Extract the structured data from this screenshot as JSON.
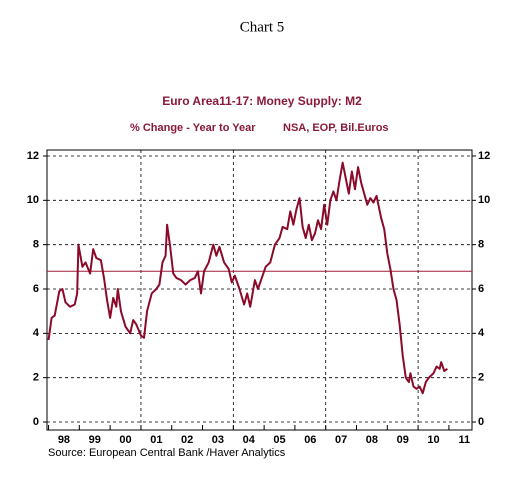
{
  "chart_data": {
    "type": "line",
    "header": "Chart 5",
    "title": "Euro Area11-17: Money Supply: M2",
    "subtitle": "% Change - Year to Year",
    "subtitle_right": "NSA, EOP, Bil.Euros",
    "source": "Source:  European Central Bank /Haver Analytics",
    "xlim": [
      1997.95,
      2011.75
    ],
    "xticks": [
      {
        "value": 1998.5,
        "label": "98"
      },
      {
        "value": 1999.5,
        "label": "99"
      },
      {
        "value": 2000.5,
        "label": "00"
      },
      {
        "value": 2001.5,
        "label": "01"
      },
      {
        "value": 2002.5,
        "label": "02"
      },
      {
        "value": 2003.5,
        "label": "03"
      },
      {
        "value": 2004.5,
        "label": "04"
      },
      {
        "value": 2005.5,
        "label": "05"
      },
      {
        "value": 2006.5,
        "label": "06"
      },
      {
        "value": 2007.5,
        "label": "07"
      },
      {
        "value": 2008.5,
        "label": "08"
      },
      {
        "value": 2009.5,
        "label": "09"
      },
      {
        "value": 2010.5,
        "label": "10"
      },
      {
        "value": 2011.5,
        "label": "11"
      }
    ],
    "xminorticks": [
      1998,
      1999,
      2000,
      2001,
      2002,
      2003,
      2004,
      2005,
      2006,
      2007,
      2008,
      2009,
      2010,
      2011
    ],
    "xgrid": [
      2001,
      2004,
      2007,
      2010
    ],
    "ylim": [
      -0.36,
      12.27
    ],
    "yticks": [
      0,
      2,
      4,
      6,
      8,
      10,
      12
    ],
    "grid": true,
    "reference_line": {
      "value": 6.8,
      "color": "#a01c3a"
    },
    "series": [
      {
        "name": "M2",
        "color": "#8b0a2a",
        "x": [
          1998.0,
          1998.1,
          1998.2,
          1998.35,
          1998.45,
          1998.55,
          1998.7,
          1998.85,
          1998.93,
          1998.97,
          1999.1,
          1999.2,
          1999.35,
          1999.45,
          1999.55,
          1999.7,
          1999.8,
          1999.9,
          2000.0,
          2000.1,
          2000.2,
          2000.25,
          2000.35,
          2000.5,
          2000.65,
          2000.75,
          2000.85,
          2001.0,
          2001.1,
          2001.2,
          2001.35,
          2001.5,
          2001.6,
          2001.7,
          2001.8,
          2001.85,
          2001.95,
          2002.05,
          2002.15,
          2002.3,
          2002.45,
          2002.6,
          2002.75,
          2002.85,
          2002.95,
          2003.05,
          2003.2,
          2003.35,
          2003.45,
          2003.55,
          2003.7,
          2003.85,
          2003.95,
          2004.05,
          2004.2,
          2004.35,
          2004.45,
          2004.55,
          2004.7,
          2004.8,
          2004.95,
          2005.05,
          2005.2,
          2005.35,
          2005.5,
          2005.6,
          2005.75,
          2005.85,
          2005.95,
          2006.05,
          2006.15,
          2006.25,
          2006.35,
          2006.45,
          2006.55,
          2006.65,
          2006.75,
          2006.85,
          2006.95,
          2007.05,
          2007.15,
          2007.25,
          2007.35,
          2007.45,
          2007.55,
          2007.65,
          2007.75,
          2007.85,
          2007.95,
          2008.05,
          2008.15,
          2008.25,
          2008.35,
          2008.45,
          2008.55,
          2008.65,
          2008.8,
          2008.9,
          2009.0,
          2009.1,
          2009.2,
          2009.3,
          2009.4,
          2009.5,
          2009.6,
          2009.7,
          2009.75,
          2009.85,
          2009.95,
          2010.05,
          2010.15,
          2010.25,
          2010.35,
          2010.5,
          2010.6,
          2010.7,
          2010.75,
          2010.85,
          2010.95
        ],
        "values": [
          3.7,
          4.7,
          4.8,
          5.9,
          6.0,
          5.4,
          5.2,
          5.3,
          5.8,
          8.0,
          7.0,
          7.2,
          6.7,
          7.8,
          7.4,
          7.3,
          6.5,
          5.5,
          4.7,
          5.6,
          5.2,
          6.0,
          5.0,
          4.3,
          4.0,
          4.6,
          4.4,
          3.9,
          3.8,
          5.0,
          5.8,
          6.0,
          6.2,
          7.2,
          7.5,
          8.9,
          7.9,
          6.7,
          6.5,
          6.4,
          6.2,
          6.4,
          6.5,
          6.8,
          5.8,
          6.8,
          7.2,
          8.0,
          7.5,
          7.9,
          7.2,
          6.9,
          6.3,
          6.6,
          6.0,
          5.3,
          5.8,
          5.2,
          6.4,
          6.0,
          6.6,
          7.0,
          7.2,
          8.0,
          8.3,
          8.8,
          8.7,
          9.5,
          8.9,
          9.6,
          10.1,
          8.8,
          8.3,
          8.9,
          8.2,
          8.5,
          9.1,
          8.7,
          9.8,
          8.9,
          10.0,
          10.4,
          10.0,
          10.9,
          11.7,
          11.0,
          10.3,
          11.3,
          10.5,
          11.5,
          10.8,
          10.3,
          9.8,
          10.1,
          9.9,
          10.2,
          9.2,
          8.7,
          7.6,
          6.9,
          6.0,
          5.5,
          4.4,
          3.0,
          2.0,
          1.8,
          2.2,
          1.6,
          1.5,
          1.6,
          1.3,
          1.8,
          2.0,
          2.2,
          2.5,
          2.4,
          2.7,
          2.3,
          2.4
        ]
      }
    ]
  }
}
